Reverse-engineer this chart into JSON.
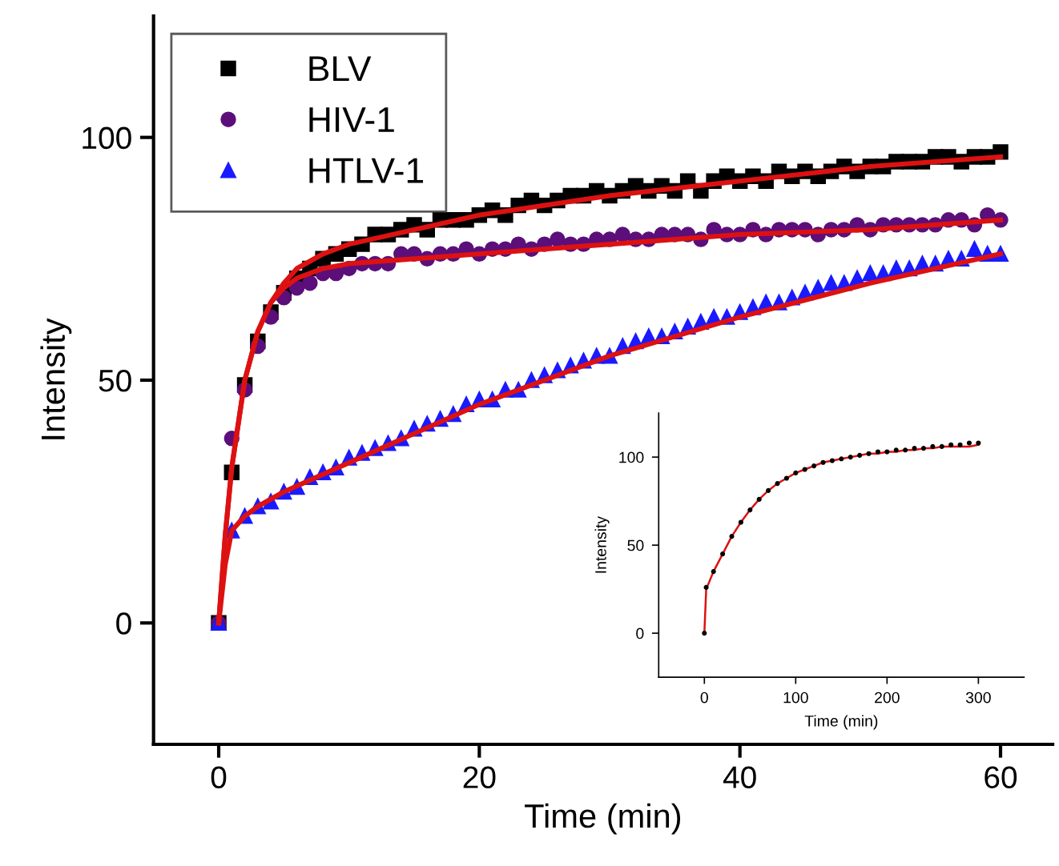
{
  "chart_data": [
    {
      "type": "scatter",
      "xlabel": "Time (min)",
      "ylabel": "Intensity",
      "xlim": [
        -5,
        64
      ],
      "ylim": [
        -25,
        125
      ],
      "xticks": [
        0,
        20,
        40,
        60
      ],
      "yticks": [
        0,
        50,
        100
      ],
      "legend": "top left",
      "grid": false,
      "x": [
        0,
        1,
        2,
        3,
        4,
        5,
        6,
        7,
        8,
        9,
        10,
        11,
        12,
        13,
        14,
        15,
        16,
        17,
        18,
        19,
        20,
        21,
        22,
        23,
        24,
        25,
        26,
        27,
        28,
        29,
        30,
        31,
        32,
        33,
        34,
        35,
        36,
        37,
        38,
        39,
        40,
        41,
        42,
        43,
        44,
        45,
        46,
        47,
        48,
        49,
        50,
        51,
        52,
        53,
        54,
        55,
        56,
        57,
        58,
        59,
        60
      ],
      "series": [
        {
          "name": "BLV",
          "color": "#000000",
          "marker": "square",
          "values": [
            0,
            31,
            49,
            58,
            64,
            68,
            71,
            73,
            75,
            76,
            77,
            78,
            80,
            80,
            81,
            82,
            81,
            83,
            83,
            83,
            84,
            85,
            84,
            86,
            87,
            86,
            87,
            88,
            88,
            89,
            88,
            89,
            90,
            89,
            90,
            89,
            91,
            89,
            91,
            92,
            91,
            92,
            91,
            93,
            92,
            93,
            92,
            93,
            94,
            93,
            94,
            94,
            95,
            95,
            95,
            96,
            96,
            95,
            96,
            96,
            97
          ]
        },
        {
          "name": "HIV-1",
          "color": "#5c0f7a",
          "marker": "circle",
          "values": [
            0,
            38,
            48,
            57,
            63,
            67,
            69,
            70,
            72,
            72,
            73,
            74,
            74,
            74,
            76,
            76,
            75,
            76,
            76,
            77,
            76,
            77,
            77,
            78,
            77,
            78,
            79,
            78,
            78,
            79,
            79,
            80,
            79,
            79,
            80,
            80,
            80,
            79,
            81,
            80,
            80,
            81,
            80,
            81,
            81,
            81,
            80,
            81,
            81,
            82,
            81,
            82,
            82,
            82,
            82,
            82,
            83,
            83,
            82,
            84,
            83
          ]
        },
        {
          "name": "HTLV-1",
          "color": "#1a1aff",
          "marker": "triangle",
          "values": [
            0,
            19,
            22,
            24,
            25,
            27,
            28,
            30,
            31,
            32,
            34,
            35,
            36,
            37,
            38,
            40,
            41,
            42,
            43,
            45,
            46,
            46,
            48,
            48,
            50,
            51,
            52,
            53,
            54,
            55,
            55,
            57,
            58,
            59,
            59,
            60,
            61,
            62,
            63,
            63,
            64,
            65,
            66,
            66,
            67,
            68,
            69,
            70,
            70,
            71,
            72,
            72,
            73,
            73,
            74,
            74,
            75,
            75,
            77,
            76,
            76
          ]
        },
        {
          "type": "line",
          "color": "#dd1111",
          "x": [
            0,
            0.5,
            1,
            2,
            3,
            4,
            5,
            6,
            8,
            10,
            15,
            20,
            30,
            40,
            50,
            60
          ],
          "values": [
            0,
            18,
            32,
            50,
            60,
            66,
            70,
            73,
            76,
            78,
            81,
            84,
            88,
            91,
            94,
            96
          ]
        },
        {
          "type": "line",
          "color": "#dd1111",
          "x": [
            0,
            0.5,
            1,
            2,
            3,
            4,
            5,
            6,
            8,
            10,
            15,
            20,
            30,
            40,
            50,
            60
          ],
          "values": [
            0,
            18,
            32,
            50,
            60,
            66,
            69,
            71,
            73,
            74,
            75,
            76,
            78,
            80,
            81,
            83
          ]
        },
        {
          "type": "line",
          "color": "#dd1111",
          "x": [
            0,
            0.5,
            1,
            2,
            3,
            5,
            10,
            20,
            30,
            40,
            50,
            60
          ],
          "values": [
            0,
            12,
            19,
            22,
            24,
            27,
            33,
            45,
            55,
            63,
            70,
            76
          ]
        }
      ]
    },
    {
      "type": "scatter",
      "xlabel": "Time (min)",
      "ylabel": "Intensity",
      "xlim": [
        -50,
        350
      ],
      "ylim": [
        -25,
        125
      ],
      "xticks": [
        0,
        100,
        200,
        300
      ],
      "yticks": [
        0,
        50,
        100
      ],
      "grid": false,
      "x": [
        0,
        2,
        10,
        20,
        30,
        40,
        50,
        60,
        70,
        80,
        90,
        100,
        110,
        120,
        130,
        140,
        150,
        160,
        170,
        180,
        190,
        200,
        210,
        220,
        230,
        240,
        250,
        260,
        270,
        280,
        290,
        300
      ],
      "series": [
        {
          "color": "#000000",
          "marker": "circle",
          "values": [
            0,
            26,
            35,
            45,
            55,
            63,
            70,
            76,
            81,
            85,
            88,
            91,
            93,
            95,
            97,
            98,
            99,
            100,
            101,
            102,
            103,
            103,
            104,
            104,
            105,
            105,
            106,
            106,
            107,
            107,
            108,
            108
          ]
        },
        {
          "type": "line",
          "color": "#dd1111",
          "values": [
            0,
            25,
            35,
            45,
            55,
            63,
            70,
            76,
            81,
            85,
            88,
            91,
            93,
            95,
            97,
            98,
            99,
            100,
            101,
            102,
            102,
            103,
            103,
            104,
            104,
            105,
            105,
            106,
            106,
            106,
            106,
            107
          ]
        }
      ]
    }
  ]
}
